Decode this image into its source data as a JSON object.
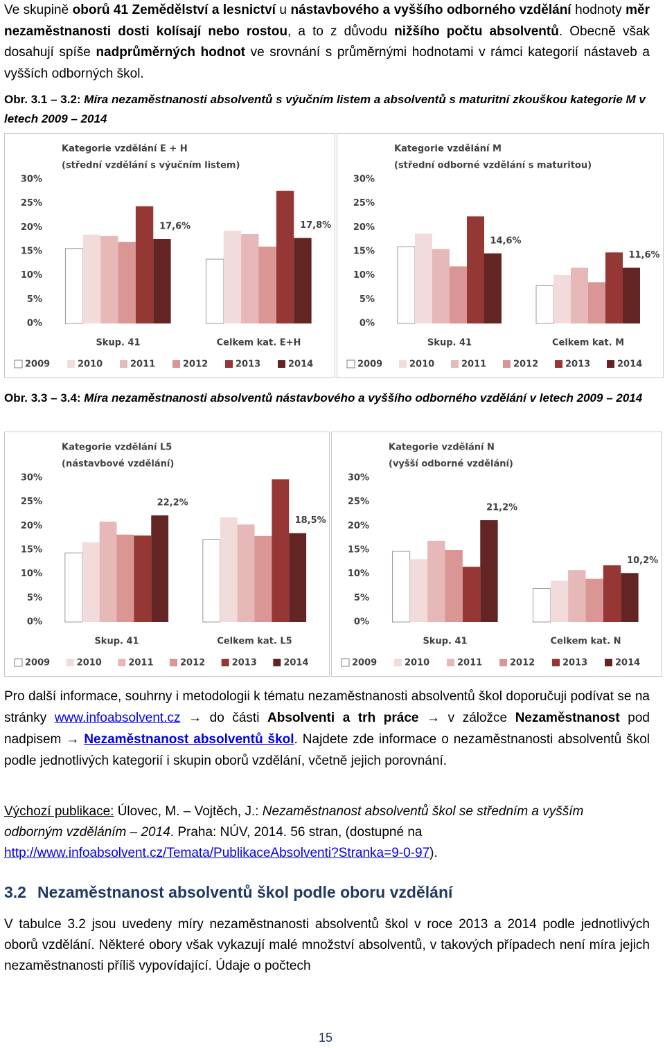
{
  "intro": [
    "Ve skupině ",
    "oborů 41 Zemědělství a lesnictví",
    " u ",
    "nástavbového a vyššího odborného vzdělání",
    " hodnoty ",
    "měr nezaměstnanosti dosti kolísají nebo rostou",
    ", a to z důvodu ",
    "nižšího počtu absolventů",
    ". Obecně však dosahují spíše ",
    "nadprůměrných hodnot",
    " ve srovnání s průměrnými hodnotami v rámci kategorií nástaveb a vyšších odborných škol."
  ],
  "captions": [
    {
      "label": "Obr. 3.1 – 3.2:",
      "text": "Míra nezaměstnanosti absolventů s výučním listem a absolventů s maturitní zkouškou kategorie M v letech 2009 – 2014"
    },
    {
      "label": "Obr. 3.3 – 3.4:",
      "text": "Míra nezaměstnanosti absolventů nástavbového a vyššího odborného vzdělání v letech 2009 – 2014"
    }
  ],
  "chart_data": [
    {
      "type": "bar",
      "title": "Kategorie vzdělání E + H",
      "subtitle": "(střední vzdělání s výučním listem)",
      "categories": [
        "Skup. 41",
        "Celkem kat. E+H"
      ],
      "series": [
        {
          "name": "2009",
          "color": "#ffffff",
          "values": [
            15.6,
            13.4
          ]
        },
        {
          "name": "2010",
          "color": "#f2dcdb",
          "values": [
            18.5,
            19.3
          ]
        },
        {
          "name": "2011",
          "color": "#e6b9b8",
          "values": [
            18.2,
            18.6
          ]
        },
        {
          "name": "2012",
          "color": "#d99694",
          "values": [
            17.0,
            16.0
          ]
        },
        {
          "name": "2013",
          "color": "#953735",
          "values": [
            24.4,
            27.6
          ]
        },
        {
          "name": "2014",
          "color": "#632523",
          "values": [
            17.6,
            17.8
          ],
          "value_labels": [
            "17,6%",
            "17,8%"
          ]
        }
      ],
      "ylim": [
        0,
        30
      ],
      "yticks": [
        {
          "value": 0,
          "label": "0%"
        },
        {
          "value": 5,
          "label": "5%"
        },
        {
          "value": 10,
          "label": "10%"
        },
        {
          "value": 15,
          "label": "15%"
        },
        {
          "value": 20,
          "label": "20%"
        },
        {
          "value": 25,
          "label": "25%"
        },
        {
          "value": 30,
          "label": "30%"
        }
      ],
      "grid": false,
      "legend": "bottom"
    },
    {
      "type": "bar",
      "title": "Kategorie vzdělání M",
      "subtitle": "(střední odborné vzdělání s maturitou)",
      "categories": [
        "Skup. 41",
        "Celkem kat. M"
      ],
      "series": [
        {
          "name": "2009",
          "color": "#ffffff",
          "values": [
            16.0,
            7.9
          ]
        },
        {
          "name": "2010",
          "color": "#f2dcdb",
          "values": [
            18.7,
            10.1
          ]
        },
        {
          "name": "2011",
          "color": "#e6b9b8",
          "values": [
            15.5,
            11.6
          ]
        },
        {
          "name": "2012",
          "color": "#d99694",
          "values": [
            11.9,
            8.6
          ]
        },
        {
          "name": "2013",
          "color": "#953735",
          "values": [
            22.3,
            14.8
          ]
        },
        {
          "name": "2014",
          "color": "#632523",
          "values": [
            14.6,
            11.6
          ],
          "value_labels": [
            "14,6%",
            "11,6%"
          ]
        }
      ],
      "ylim": [
        0,
        30
      ],
      "yticks": [
        {
          "value": 0,
          "label": "0%"
        },
        {
          "value": 5,
          "label": "5%"
        },
        {
          "value": 10,
          "label": "10%"
        },
        {
          "value": 15,
          "label": "15%"
        },
        {
          "value": 20,
          "label": "20%"
        },
        {
          "value": 25,
          "label": "25%"
        },
        {
          "value": 30,
          "label": "30%"
        }
      ],
      "grid": false,
      "legend": "bottom"
    },
    {
      "type": "bar",
      "title": "Kategorie vzdělání L5",
      "subtitle": "(nástavbové vzdělání)",
      "categories": [
        "Skup. 41",
        "Celkem kat. L5"
      ],
      "series": [
        {
          "name": "2009",
          "color": "#ffffff",
          "values": [
            14.4,
            17.2
          ]
        },
        {
          "name": "2010",
          "color": "#f2dcdb",
          "values": [
            16.6,
            21.8
          ]
        },
        {
          "name": "2011",
          "color": "#e6b9b8",
          "values": [
            20.9,
            20.3
          ]
        },
        {
          "name": "2012",
          "color": "#d99694",
          "values": [
            18.2,
            17.9
          ]
        },
        {
          "name": "2013",
          "color": "#953735",
          "values": [
            18.0,
            29.7
          ]
        },
        {
          "name": "2014",
          "color": "#632523",
          "values": [
            22.2,
            18.5
          ],
          "value_labels": [
            "22,2%",
            "18,5%"
          ]
        }
      ],
      "ylim": [
        0,
        30
      ],
      "yticks": [
        {
          "value": 0,
          "label": "0%"
        },
        {
          "value": 5,
          "label": "5%"
        },
        {
          "value": 10,
          "label": "10%"
        },
        {
          "value": 15,
          "label": "15%"
        },
        {
          "value": 20,
          "label": "20%"
        },
        {
          "value": 25,
          "label": "25%"
        },
        {
          "value": 30,
          "label": "30%"
        }
      ],
      "grid": false,
      "legend": "bottom"
    },
    {
      "type": "bar",
      "title": "Kategorie vzdělání N",
      "subtitle": "(vyšší odborné vzdělání)",
      "categories": [
        "Skup. 41",
        "Celkem kat. N"
      ],
      "series": [
        {
          "name": "2009",
          "color": "#ffffff",
          "values": [
            14.7,
            7.0
          ]
        },
        {
          "name": "2010",
          "color": "#f2dcdb",
          "values": [
            13.1,
            8.6
          ]
        },
        {
          "name": "2011",
          "color": "#e6b9b8",
          "values": [
            16.9,
            10.8
          ]
        },
        {
          "name": "2012",
          "color": "#d99694",
          "values": [
            15.0,
            9.0
          ]
        },
        {
          "name": "2013",
          "color": "#953735",
          "values": [
            11.5,
            11.8
          ]
        },
        {
          "name": "2014",
          "color": "#632523",
          "values": [
            21.2,
            10.2
          ],
          "value_labels": [
            "21,2%",
            "10,2%"
          ]
        }
      ],
      "ylim": [
        0,
        30
      ],
      "yticks": [
        {
          "value": 0,
          "label": "0%"
        },
        {
          "value": 5,
          "label": "5%"
        },
        {
          "value": 10,
          "label": "10%"
        },
        {
          "value": 15,
          "label": "15%"
        },
        {
          "value": 20,
          "label": "20%"
        },
        {
          "value": 25,
          "label": "25%"
        },
        {
          "value": 30,
          "label": "30%"
        }
      ],
      "grid": false,
      "legend": "bottom"
    }
  ],
  "info": [
    "Pro další informace, souhrny i metodologii k tématu nezaměstnanosti absolventů škol doporučuji podívat se na stránky ",
    "www.infoabsolvent.cz",
    " → do části ",
    "Absolventi a trh práce",
    " → v záložce ",
    "Nezaměstnanost",
    " pod nadpisem → ",
    "Nezaměstnanost absolventů škol",
    ". Najdete zde informace o nezaměstnanosti absolventů škol podle jednotlivých kategorií i skupin oborů vzdělání, včetně jejich porovnání."
  ],
  "source": [
    "Výchozí publikace:",
    " Úlovec, M. – Vojtěch, J.: ",
    "Nezaměstnanost absolventů škol se středním a vyšším odborným vzděláním – 2014",
    ". Praha: NÚV, 2014. 56 stran, (dostupné na ",
    "http://www.infoabsolvent.cz/Temata/PublikaceAbsolventi?Stranka=9-0-97",
    ")."
  ],
  "heading": {
    "number": "3.2",
    "text": "Nezaměstnanost absolventů škol podle oboru vzdělání"
  },
  "body": "V tabulce 3.2 jsou uvedeny míry nezaměstnanosti absolventů škol v roce 2013 a 2014 podle jednotlivých oborů vzdělání. Některé obory však vykazují malé množství absolventů, v takových případech není míra jejich nezaměstnanosti příliš vypovídající. Údaje o počtech",
  "page_number": 15
}
